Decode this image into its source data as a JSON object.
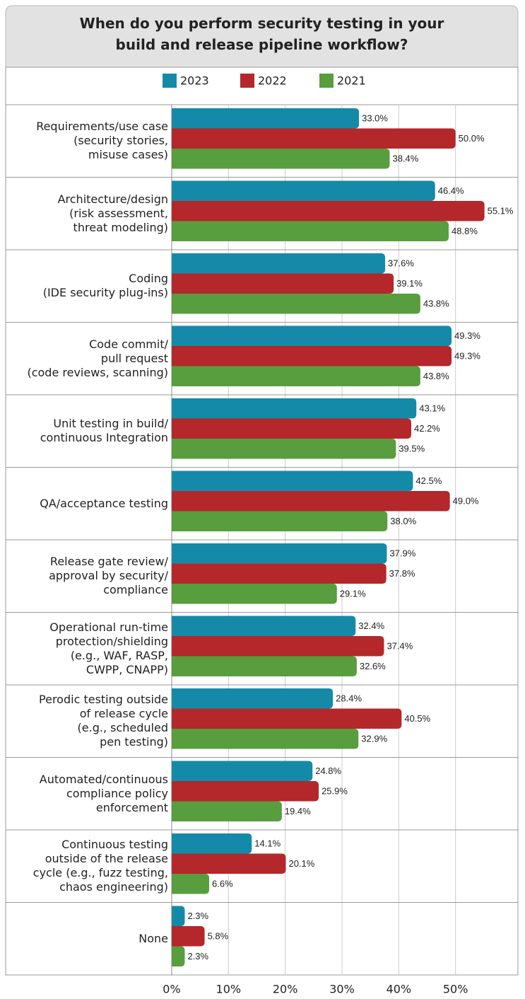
{
  "chart_data": {
    "type": "bar",
    "orientation": "horizontal",
    "title": "When do you perform security testing in your\nbuild and release pipeline workflow?",
    "categories": [
      "Requirements/use case\n(security stories,\nmisuse cases)",
      "Architecture/design\n(risk assessment,\nthreat modeling)",
      "Coding\n(IDE security plug-ins)",
      "Code commit/\npull request\n(code reviews, scanning)",
      "Unit testing in build/\ncontinuous Integration",
      "QA/acceptance testing",
      "Release gate review/\napproval by security/\ncompliance",
      "Operational run-time\nprotection/shielding\n(e.g., WAF, RASP,\nCWPP, CNAPP)",
      "Perodic testing outside\nof release cycle\n(e.g., scheduled\npen testing)",
      "Automated/continuous\ncompliance policy\nenforcement",
      "Continuous testing\noutside of the release\ncycle (e.g., fuzz testing,\nchaos engineering)",
      "None"
    ],
    "series": [
      {
        "name": "2023",
        "color": "#158aa8",
        "values": [
          33.0,
          46.4,
          37.6,
          49.3,
          43.1,
          42.5,
          37.9,
          32.4,
          28.4,
          24.8,
          14.1,
          2.3
        ],
        "value_labels": [
          "33.0%",
          "46.4%",
          "37.6%",
          "49.3%",
          "43.1%",
          "42.5%",
          "37.9%",
          "32.4%",
          "28.4%",
          "24.8%",
          "14.1%",
          "2.3%"
        ]
      },
      {
        "name": "2022",
        "color": "#b4272a",
        "values": [
          50.0,
          55.1,
          39.1,
          49.3,
          42.2,
          49.0,
          37.8,
          37.4,
          40.5,
          25.9,
          20.1,
          5.8
        ],
        "value_labels": [
          "50.0%",
          "55.1%",
          "39.1%",
          "49.3%",
          "42.2%",
          "49.0%",
          "37.8%",
          "37.4%",
          "40.5%",
          "25.9%",
          "20.1%",
          "5.8%"
        ]
      },
      {
        "name": "2021",
        "color": "#589d3e",
        "values": [
          38.4,
          48.8,
          43.8,
          43.8,
          39.5,
          38.0,
          29.1,
          32.6,
          32.9,
          19.4,
          6.6,
          2.3
        ],
        "value_labels": [
          "38.4%",
          "48.8%",
          "43.8%",
          "43.8%",
          "39.5%",
          "38.0%",
          "29.1%",
          "32.6%",
          "32.9%",
          "19.4%",
          "6.6%",
          "2.3%"
        ]
      }
    ],
    "xlim": [
      0,
      60
    ],
    "xticks": [
      {
        "value": 0,
        "label": "0%"
      },
      {
        "value": 10,
        "label": "10%"
      },
      {
        "value": 20,
        "label": "20%"
      },
      {
        "value": 30,
        "label": "30%"
      },
      {
        "value": 40,
        "label": "40%"
      },
      {
        "value": 50,
        "label": "50%"
      }
    ],
    "grid": true,
    "legend": "top"
  }
}
